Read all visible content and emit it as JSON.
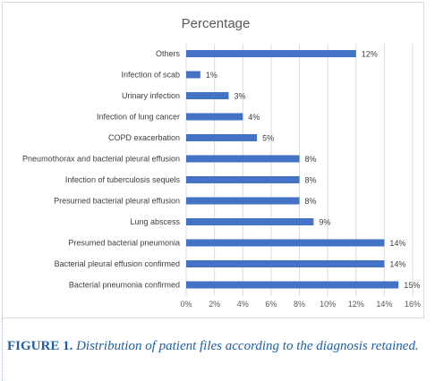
{
  "caption": {
    "label": "FIGURE 1.",
    "text": "Distribution of patient files according to the diagnosis retained."
  },
  "colors": {
    "bar": "#4472c4",
    "caption": "#1f5ea8",
    "grid": "#d9d9d9"
  },
  "chart_data": {
    "type": "bar",
    "orientation": "horizontal",
    "title": "Percentage",
    "xlabel": "",
    "ylabel": "",
    "xlim": [
      0,
      16
    ],
    "x_ticks": [
      "0%",
      "2%",
      "4%",
      "6%",
      "8%",
      "10%",
      "12%",
      "14%",
      "16%"
    ],
    "grid": true,
    "categories": [
      "Others",
      "Infection of scab",
      "Urinary infection",
      "Infection of lung cancer",
      "COPD exacerbation",
      "Pneumothorax and bacterial  pleural effusion",
      "Infection of tuberculosis sequels",
      "Presumed bacterial pleural effusion",
      "Lung abscess",
      "Presumed bacterial pneumonia",
      "Bacterial  pleural effusion confirmed",
      "Bacterial pneumonia confirmed"
    ],
    "values": [
      12,
      1,
      3,
      4,
      5,
      8,
      8,
      8,
      9,
      14,
      14,
      15
    ],
    "data_labels": [
      "12%",
      "1%",
      "3%",
      "4%",
      "5%",
      "8%",
      "8%",
      "8%",
      "9%",
      "14%",
      "14%",
      "15%"
    ]
  }
}
